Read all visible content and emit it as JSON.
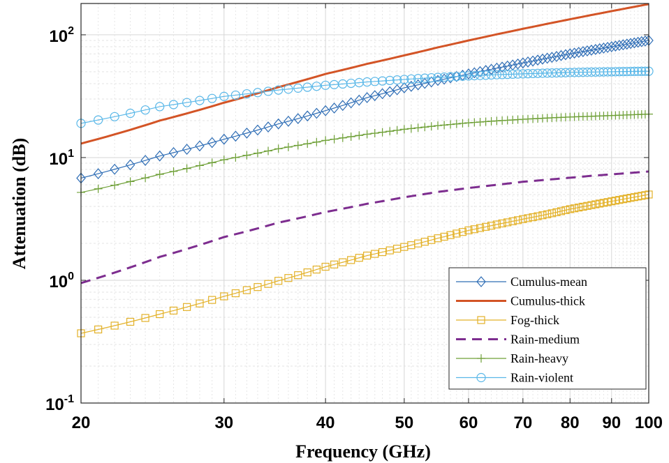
{
  "chart_data": {
    "type": "line",
    "xlabel": "Frequency (GHz)",
    "ylabel": "Attenuation (dB)",
    "x_scale": "log",
    "y_scale": "log",
    "xlim": [
      20,
      100
    ],
    "ylim": [
      0.1,
      180
    ],
    "grid": true,
    "legend_position": "bottom-right",
    "x_ticks": [
      20,
      30,
      40,
      50,
      60,
      70,
      80,
      90,
      100
    ],
    "x_tick_labels": [
      "20",
      "30",
      "40",
      "50",
      "60",
      "70",
      "80",
      "90",
      "100"
    ],
    "y_ticks": [
      0.1,
      1,
      10,
      100
    ],
    "y_tick_labels": [
      {
        "base": "10",
        "exp": "-1"
      },
      {
        "base": "10",
        "exp": "0"
      },
      {
        "base": "10",
        "exp": "1"
      },
      {
        "base": "10",
        "exp": "2"
      }
    ],
    "x": [
      20,
      25,
      30,
      35,
      40,
      45,
      50,
      55,
      60,
      65,
      70,
      75,
      80,
      85,
      90,
      95,
      100
    ],
    "series": [
      {
        "name": "Cumulus-mean",
        "color": "#2e6db5",
        "style": "solid",
        "marker": "diamond",
        "values": [
          6.8,
          10.3,
          14.1,
          18.8,
          24.1,
          30.8,
          37.0,
          42.5,
          48.0,
          53.5,
          59.0,
          64.5,
          70.0,
          75.0,
          80.0,
          85.0,
          90.0
        ]
      },
      {
        "name": "Cumulus-thick",
        "color": "#d35426",
        "style": "solid-thick",
        "marker": "none",
        "values": [
          13.0,
          20.0,
          28.0,
          37.5,
          48.0,
          58.0,
          68.0,
          79.0,
          90.0,
          101.0,
          112.0,
          123.0,
          134.0,
          145.0,
          156.0,
          167.0,
          178.0
        ]
      },
      {
        "name": "Fog-thick",
        "color": "#e3b128",
        "style": "solid",
        "marker": "square",
        "values": [
          0.37,
          0.53,
          0.74,
          0.99,
          1.29,
          1.59,
          1.87,
          2.2,
          2.55,
          2.85,
          3.15,
          3.45,
          3.8,
          4.1,
          4.4,
          4.7,
          5.0
        ]
      },
      {
        "name": "Rain-medium",
        "color": "#7d2d8f",
        "style": "dashed",
        "marker": "none",
        "values": [
          0.95,
          1.55,
          2.25,
          2.95,
          3.6,
          4.2,
          4.75,
          5.25,
          5.65,
          6.0,
          6.35,
          6.6,
          6.85,
          7.1,
          7.3,
          7.5,
          7.7
        ]
      },
      {
        "name": "Rain-heavy",
        "color": "#6fa038",
        "style": "solid",
        "marker": "plus",
        "values": [
          5.2,
          7.3,
          9.6,
          11.8,
          13.8,
          15.5,
          17.0,
          18.2,
          19.2,
          19.9,
          20.5,
          21.0,
          21.4,
          21.7,
          22.0,
          22.3,
          22.6
        ]
      },
      {
        "name": "Rain-violent",
        "color": "#59b7e8",
        "style": "solid",
        "marker": "circle",
        "values": [
          19.0,
          26.0,
          31.5,
          35.5,
          38.8,
          41.3,
          43.3,
          45.0,
          46.3,
          47.3,
          48.1,
          48.8,
          49.3,
          49.7,
          50.0,
          50.3,
          50.5
        ]
      }
    ]
  }
}
